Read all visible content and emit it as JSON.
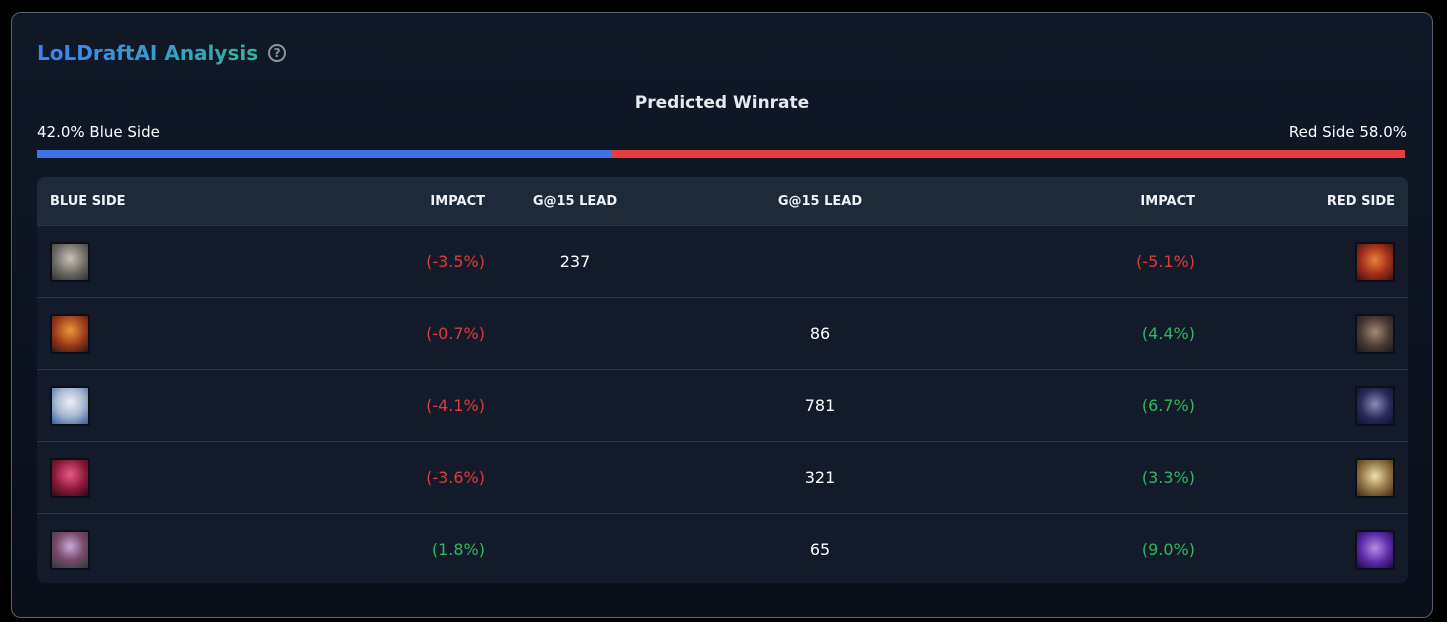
{
  "header": {
    "title": "LoLDraftAI Analysis",
    "help_icon": "?"
  },
  "winrate": {
    "title": "Predicted Winrate",
    "blue_label": "42.0% Blue Side",
    "red_label": "Red Side 58.0%",
    "blue_pct": 42.0,
    "red_pct": 58.0,
    "blue_color": "#3b74e6",
    "red_color": "#e53e3e"
  },
  "table": {
    "headers": {
      "blue_side": "BLUE SIDE",
      "blue_impact": "IMPACT",
      "blue_g15": "G@15 LEAD",
      "red_g15": "G@15 LEAD",
      "red_impact": "IMPACT",
      "red_side": "RED SIDE"
    },
    "rows": [
      {
        "blue_impact": "(-3.5%)",
        "blue_g15": "237",
        "red_g15": "",
        "red_impact": "(-5.1%)"
      },
      {
        "blue_impact": "(-0.7%)",
        "blue_g15": "",
        "red_g15": "86",
        "red_impact": "(4.4%)"
      },
      {
        "blue_impact": "(-4.1%)",
        "blue_g15": "",
        "red_g15": "781",
        "red_impact": "(6.7%)"
      },
      {
        "blue_impact": "(-3.6%)",
        "blue_g15": "",
        "red_g15": "321",
        "red_impact": "(3.3%)"
      },
      {
        "blue_impact": "(1.8%)",
        "blue_g15": "",
        "red_g15": "65",
        "red_impact": "(9.0%)"
      }
    ]
  }
}
